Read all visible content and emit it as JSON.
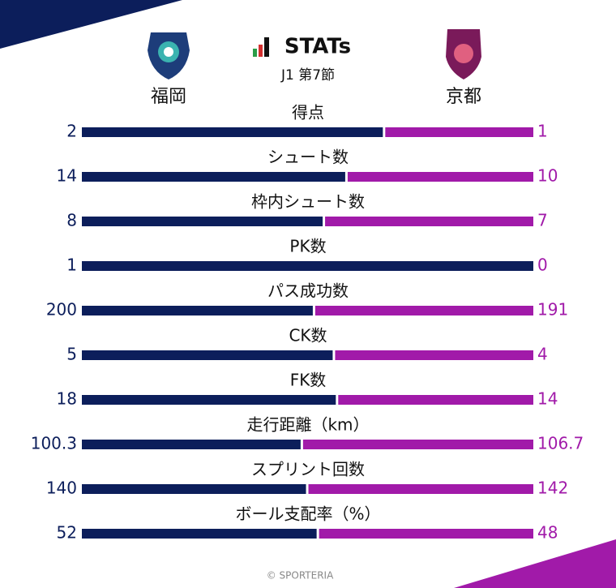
{
  "chart_data": {
    "type": "comparison",
    "title": "STATs",
    "subtitle": "J1 第7節",
    "footer": "© SPORTERIA",
    "categories": [
      "得点",
      "シュート数",
      "枠内シュート数",
      "PK数",
      "パス成功数",
      "CK数",
      "FK数",
      "走行距離（km）",
      "スプリント回数",
      "ボール支配率（%）"
    ],
    "series": [
      {
        "name": "福岡",
        "color": "#0c1e5b",
        "values": [
          2,
          14,
          8,
          1,
          200,
          5,
          18,
          100.3,
          140,
          52
        ]
      },
      {
        "name": "京都",
        "color": "#a11aa9",
        "values": [
          1,
          10,
          7,
          0,
          191,
          4,
          14,
          106.7,
          142,
          48
        ]
      }
    ]
  }
}
